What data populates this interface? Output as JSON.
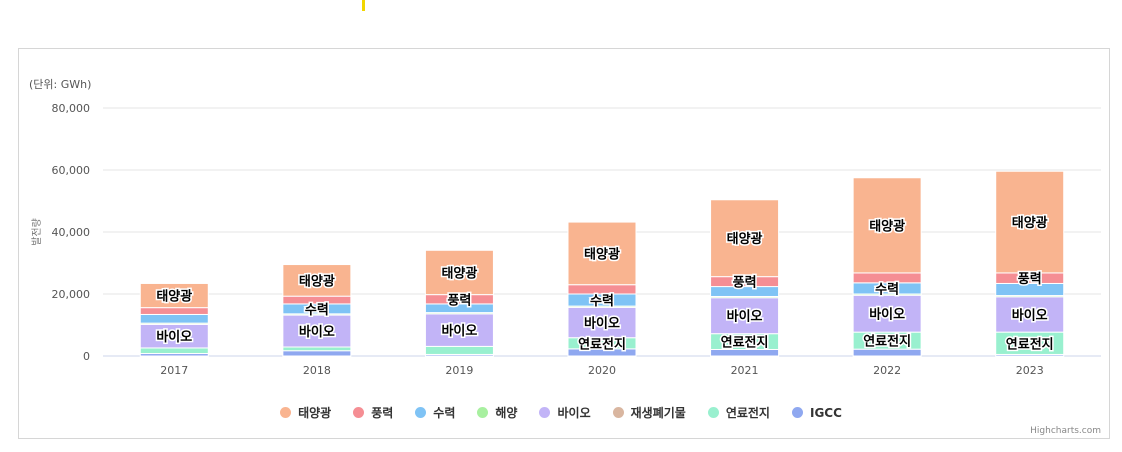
{
  "chart_data": {
    "type": "bar",
    "stacked": true,
    "unit_label": "(단위: GWh)",
    "ylabel": "발전량",
    "ylim": [
      0,
      80000
    ],
    "yticks": [
      "0",
      "20,000",
      "40,000",
      "60,000",
      "80,000"
    ],
    "ytick_values": [
      0,
      20000,
      40000,
      60000,
      80000
    ],
    "grid": true,
    "legend_position": "bottom",
    "credit": "Highcharts.com",
    "categories": [
      "2017",
      "2018",
      "2019",
      "2020",
      "2021",
      "2022",
      "2023"
    ],
    "series": [
      {
        "name": "IGCC",
        "color": "#8fa8f0",
        "values": [
          800,
          1700,
          500,
          2300,
          2100,
          2200,
          500
        ]
      },
      {
        "name": "연료전지",
        "color": "#99f0cf",
        "values": [
          1800,
          1200,
          2600,
          3600,
          5100,
          5500,
          7200
        ]
      },
      {
        "name": "재생폐기물",
        "color": "#d9b6a0",
        "values": [
          0,
          0,
          0,
          0,
          0,
          0,
          0
        ]
      },
      {
        "name": "바이오",
        "color": "#c2b4f7",
        "values": [
          7600,
          10300,
          10500,
          9800,
          11600,
          11900,
          11400
        ]
      },
      {
        "name": "해양",
        "color": "#a8f0a0",
        "values": [
          400,
          400,
          400,
          400,
          400,
          400,
          400
        ]
      },
      {
        "name": "수력",
        "color": "#7fc3f5",
        "values": [
          2800,
          3200,
          2800,
          3900,
          3200,
          3600,
          3900
        ]
      },
      {
        "name": "풍력",
        "color": "#f58e94",
        "values": [
          2200,
          2500,
          3000,
          3000,
          3200,
          3200,
          3400
        ]
      },
      {
        "name": "태양광",
        "color": "#f9b490",
        "values": [
          7800,
          10200,
          14300,
          20200,
          24800,
          30700,
          32800
        ]
      }
    ],
    "data_labels": [
      {
        "category": "2017",
        "items": [
          {
            "series": "바이오",
            "text": "바이오"
          },
          {
            "series": "태양광",
            "text": "태양광"
          }
        ]
      },
      {
        "category": "2018",
        "items": [
          {
            "series": "바이오",
            "text": "바이오"
          },
          {
            "series": "수력",
            "text": "수력"
          },
          {
            "series": "태양광",
            "text": "태양광"
          }
        ]
      },
      {
        "category": "2019",
        "items": [
          {
            "series": "바이오",
            "text": "바이오"
          },
          {
            "series": "풍력",
            "text": "풍력"
          },
          {
            "series": "태양광",
            "text": "태양광"
          }
        ]
      },
      {
        "category": "2020",
        "items": [
          {
            "series": "연료전지",
            "text": "연료전지"
          },
          {
            "series": "바이오",
            "text": "바이오"
          },
          {
            "series": "수력",
            "text": "수력"
          },
          {
            "series": "태양광",
            "text": "태양광"
          }
        ]
      },
      {
        "category": "2021",
        "items": [
          {
            "series": "연료전지",
            "text": "연료전지"
          },
          {
            "series": "바이오",
            "text": "바이오"
          },
          {
            "series": "풍력",
            "text": "풍력"
          },
          {
            "series": "태양광",
            "text": "태양광"
          }
        ]
      },
      {
        "category": "2022",
        "items": [
          {
            "series": "연료전지",
            "text": "연료전지"
          },
          {
            "series": "바이오",
            "text": "바이오"
          },
          {
            "series": "수력",
            "text": "수력"
          },
          {
            "series": "태양광",
            "text": "태양광"
          }
        ]
      },
      {
        "category": "2023",
        "items": [
          {
            "series": "연료전지",
            "text": "연료전지"
          },
          {
            "series": "바이오",
            "text": "바이오"
          },
          {
            "series": "풍력",
            "text": "풍력"
          },
          {
            "series": "태양광",
            "text": "태양광"
          }
        ]
      }
    ],
    "legend": [
      {
        "name": "태양광",
        "color": "#f9b490"
      },
      {
        "name": "풍력",
        "color": "#f58e94"
      },
      {
        "name": "수력",
        "color": "#7fc3f5"
      },
      {
        "name": "해양",
        "color": "#a8f0a0"
      },
      {
        "name": "바이오",
        "color": "#c2b4f7"
      },
      {
        "name": "재생폐기물",
        "color": "#d9b6a0"
      },
      {
        "name": "연료전지",
        "color": "#99f0cf"
      },
      {
        "name": "IGCC",
        "color": "#8fa8f0"
      }
    ]
  }
}
